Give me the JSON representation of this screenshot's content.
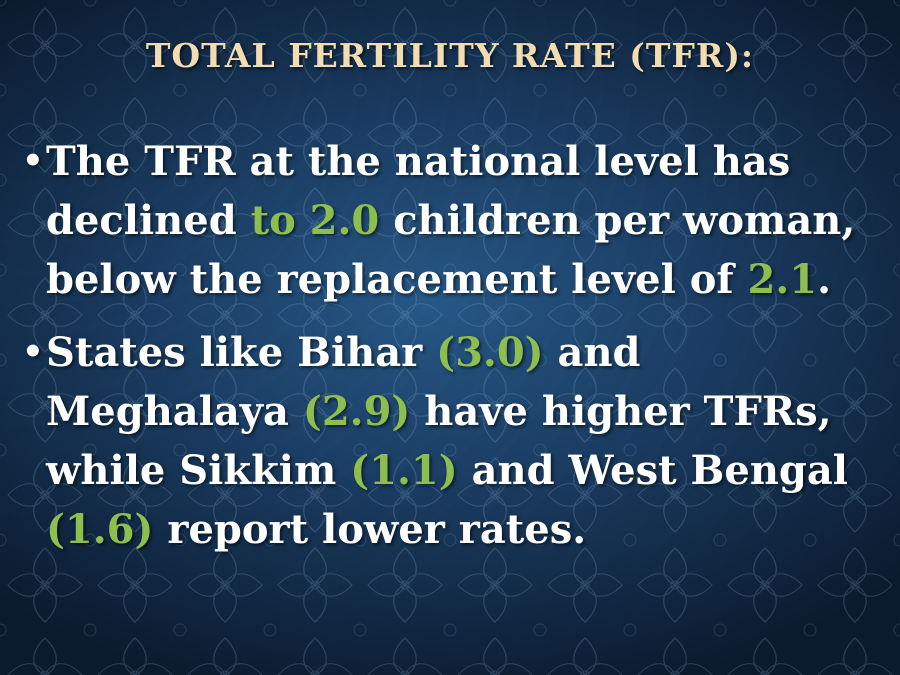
{
  "slide": {
    "title": "TOTAL FERTILITY RATE (TFR):",
    "accent_color": "#8dbf4e",
    "title_color": "#f2ddb2",
    "bullet_symbol": "•",
    "bullets": [
      {
        "segments": [
          {
            "text": "The TFR at the national level has declined ",
            "highlight": false
          },
          {
            "text": "to 2.0",
            "highlight": true
          },
          {
            "text": " children per woman, below the replacement level of ",
            "highlight": false
          },
          {
            "text": "2.1",
            "highlight": true
          },
          {
            "text": ".",
            "highlight": false
          }
        ]
      },
      {
        "segments": [
          {
            "text": "States like Bihar ",
            "highlight": false
          },
          {
            "text": "(3.0)",
            "highlight": true
          },
          {
            "text": " and Meghalaya ",
            "highlight": false
          },
          {
            "text": "(2.9)",
            "highlight": true
          },
          {
            "text": " have higher TFRs, while Sikkim ",
            "highlight": false
          },
          {
            "text": "(1.1)",
            "highlight": true
          },
          {
            "text": " and West Bengal ",
            "highlight": false
          },
          {
            "text": "(1.6)",
            "highlight": true
          },
          {
            "text": " report lower rates.",
            "highlight": false
          }
        ]
      }
    ]
  }
}
